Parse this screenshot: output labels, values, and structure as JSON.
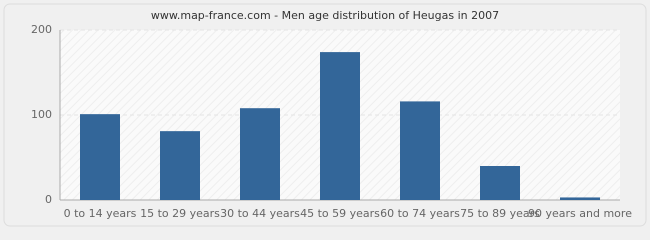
{
  "chart_data": {
    "type": "bar",
    "title": "www.map-france.com - Men age distribution of Heugas in 2007",
    "categories": [
      "0 to 14 years",
      "15 to 29 years",
      "30 to 44 years",
      "45 to 59 years",
      "60 to 74 years",
      "75 to 89 years",
      "90 years and more"
    ],
    "values": [
      101,
      81,
      108,
      174,
      116,
      40,
      3
    ],
    "color": "#336699",
    "ylim": [
      0,
      200
    ],
    "yticks": [
      0,
      100,
      200
    ],
    "grid": true
  }
}
